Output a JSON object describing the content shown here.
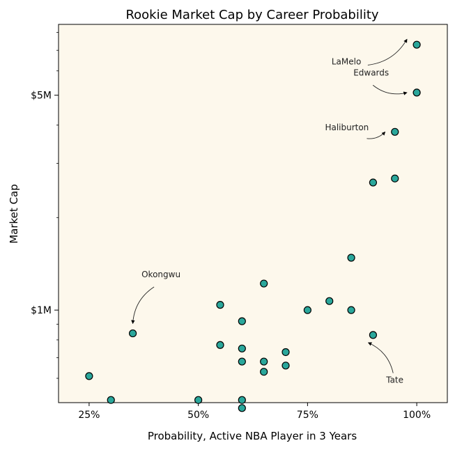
{
  "chart_data": {
    "type": "scatter",
    "title": "Rookie Market Cap by Career Probability",
    "xlabel": "Probability, Active NBA Player in 3 Years",
    "ylabel": "Market Cap",
    "xlim": [
      0.18,
      1.07
    ],
    "ylim": [
      0.5,
      8.5
    ],
    "y_scale": "log",
    "x_ticks": [
      {
        "value": 0.25,
        "label": "25%"
      },
      {
        "value": 0.5,
        "label": "50%"
      },
      {
        "value": 0.75,
        "label": "75%"
      },
      {
        "value": 1.0,
        "label": "100%"
      }
    ],
    "y_ticks": [
      {
        "value": 1,
        "label": "$1M"
      },
      {
        "value": 5,
        "label": "$5M"
      }
    ],
    "unit": "$M",
    "grid": false,
    "background_color": "#fdf8ec",
    "marker_color": "#2aa79b",
    "marker_edge_color": "#000000",
    "points": [
      {
        "x": 1.0,
        "y": 7.3
      },
      {
        "x": 1.0,
        "y": 5.1
      },
      {
        "x": 0.95,
        "y": 3.8
      },
      {
        "x": 0.95,
        "y": 2.68
      },
      {
        "x": 0.9,
        "y": 2.6
      },
      {
        "x": 0.85,
        "y": 1.48
      },
      {
        "x": 0.65,
        "y": 1.22
      },
      {
        "x": 0.8,
        "y": 1.07
      },
      {
        "x": 0.55,
        "y": 1.04
      },
      {
        "x": 0.75,
        "y": 1.0
      },
      {
        "x": 0.85,
        "y": 1.0
      },
      {
        "x": 0.6,
        "y": 0.92
      },
      {
        "x": 0.35,
        "y": 0.84
      },
      {
        "x": 0.9,
        "y": 0.83
      },
      {
        "x": 0.55,
        "y": 0.77
      },
      {
        "x": 0.6,
        "y": 0.75
      },
      {
        "x": 0.7,
        "y": 0.73
      },
      {
        "x": 0.6,
        "y": 0.68
      },
      {
        "x": 0.65,
        "y": 0.68
      },
      {
        "x": 0.7,
        "y": 0.66
      },
      {
        "x": 0.65,
        "y": 0.63
      },
      {
        "x": 0.25,
        "y": 0.61
      },
      {
        "x": 0.3,
        "y": 0.51
      },
      {
        "x": 0.5,
        "y": 0.51
      },
      {
        "x": 0.6,
        "y": 0.51
      },
      {
        "x": 0.6,
        "y": 0.48
      }
    ],
    "annotations": [
      {
        "text": "LaMelo",
        "target": {
          "x": 1.0,
          "y": 7.3
        },
        "label_at": {
          "x": 0.805,
          "y": 6.3
        },
        "anchor": "start"
      },
      {
        "text": "Edwards",
        "target": {
          "x": 1.0,
          "y": 5.1
        },
        "label_at": {
          "x": 0.855,
          "y": 5.8
        },
        "anchor": "start"
      },
      {
        "text": "Haliburton",
        "target": {
          "x": 0.95,
          "y": 3.8
        },
        "label_at": {
          "x": 0.79,
          "y": 3.85
        },
        "anchor": "start"
      },
      {
        "text": "Okongwu",
        "target": {
          "x": 0.35,
          "y": 0.84
        },
        "label_at": {
          "x": 0.37,
          "y": 1.28
        },
        "anchor": "start"
      },
      {
        "text": "Tate",
        "target": {
          "x": 0.9,
          "y": 0.83
        },
        "label_at": {
          "x": 0.93,
          "y": 0.58
        },
        "anchor": "start"
      }
    ]
  }
}
